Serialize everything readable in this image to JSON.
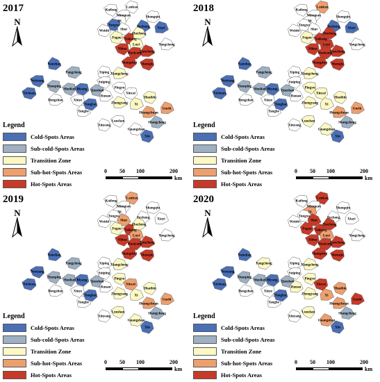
{
  "panels": [
    {
      "year": "2017"
    },
    {
      "year": "2018"
    },
    {
      "year": "2019"
    },
    {
      "year": "2020"
    }
  ],
  "north_label": "N",
  "legend": {
    "title": "Legend",
    "items": [
      {
        "label": "Cold-Spots Areas",
        "color": "#4a6fb5"
      },
      {
        "label": "Sub-cold-Spots Areas",
        "color": "#9eb0c2"
      },
      {
        "label": "Transition Zone",
        "color": "#fbf8c4"
      },
      {
        "label": "Sub-hot-Spots Areas",
        "color": "#ee9f6e"
      },
      {
        "label": "Hot-Spots Areas",
        "color": "#c83a28"
      }
    ]
  },
  "scale": {
    "ticks": [
      "0",
      "50",
      "100",
      "200"
    ],
    "unit": "km"
  },
  "counties": [
    "Lankao",
    "Kaifeng",
    "Minquan",
    "Qi",
    "Shangqiu",
    "Tongxu",
    "Weishi",
    "Yucheng",
    "Xiayi",
    "Shui",
    "Fugou",
    "Taikang",
    "Zhecheng",
    "Luyi",
    "Yongcheng",
    "Xihua",
    "Huaiyang",
    "Dancheng",
    "Shenqiu",
    "Shangshui",
    "Xiping",
    "Xiangcheng",
    "Nanzhao",
    "Fangcheng",
    "Neixiang",
    "Zhenping",
    "Xichuan",
    "Dengzhou",
    "Shedian",
    "Biyang",
    "Queshan",
    "Suiping",
    "Runan",
    "Pingyu",
    "Xincai",
    "Zhengyang",
    "Xi",
    "Huaibin",
    "Huangchuan",
    "Gushi",
    "Shangcheng",
    "Xinyang",
    "Luoshan",
    "Guangshan",
    "Xinye",
    "Tanghe",
    "Tongbai",
    "Xin"
  ],
  "hotspot_classes": [
    [
      "white",
      "white",
      "white",
      "white",
      "white",
      "blue",
      "white",
      "blue",
      "blue",
      "white",
      "yellow",
      "red",
      "yellow",
      "yellow",
      "white",
      "red",
      "red",
      "red",
      "red",
      "red",
      "white",
      "yellow",
      "blue",
      "gray",
      "blue",
      "gray",
      "blue",
      "white",
      "gray",
      "blue",
      "gray",
      "white",
      "white",
      "white",
      "white",
      "yellow",
      "yellow",
      "yellow",
      "orange",
      "orange",
      "gray",
      "white",
      "white",
      "white",
      "white",
      "white",
      "blue",
      "blue"
    ],
    [
      "orange",
      "white",
      "white",
      "white",
      "white",
      "white",
      "white",
      "blue",
      "blue",
      "white",
      "yellow",
      "red",
      "red",
      "red",
      "white",
      "red",
      "red",
      "red",
      "red",
      "red",
      "white",
      "yellow",
      "blue",
      "gray",
      "blue",
      "gray",
      "blue",
      "white",
      "gray",
      "blue",
      "gray",
      "white",
      "white",
      "yellow",
      "yellow",
      "yellow",
      "yellow",
      "yellow",
      "orange",
      "orange",
      "gray",
      "white",
      "yellow",
      "yellow",
      "white",
      "white",
      "blue",
      "blue"
    ],
    [
      "orange",
      "white",
      "white",
      "white",
      "white",
      "white",
      "white",
      "white",
      "white",
      "orange",
      "yellow",
      "red",
      "yellow",
      "orange",
      "white",
      "red",
      "red",
      "red",
      "red",
      "red",
      "white",
      "yellow",
      "blue",
      "gray",
      "blue",
      "gray",
      "blue",
      "white",
      "gray",
      "blue",
      "gray",
      "white",
      "white",
      "yellow",
      "orange",
      "yellow",
      "yellow",
      "yellow",
      "orange",
      "orange",
      "gray",
      "white",
      "yellow",
      "yellow",
      "white",
      "white",
      "blue",
      "blue"
    ],
    [
      "red",
      "white",
      "white",
      "orange",
      "white",
      "white",
      "white",
      "white",
      "white",
      "red",
      "red",
      "red",
      "red",
      "orange",
      "white",
      "red",
      "red",
      "red",
      "red",
      "red",
      "white",
      "yellow",
      "blue",
      "yellow",
      "blue",
      "gray",
      "blue",
      "white",
      "gray",
      "blue",
      "gray",
      "white",
      "yellow",
      "yellow",
      "red",
      "yellow",
      "orange",
      "orange",
      "orange",
      "red",
      "gray",
      "white",
      "yellow",
      "orange",
      "white",
      "white",
      "blue",
      "blue"
    ]
  ]
}
